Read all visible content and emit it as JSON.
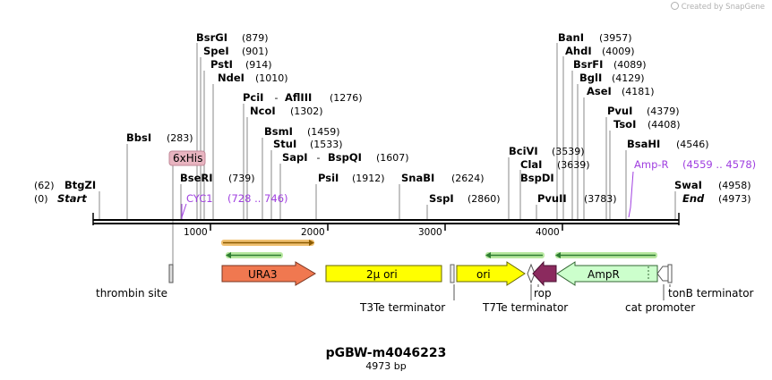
{
  "credit": "Created by SnapGene",
  "plasmid": {
    "name": "pGBW-m4046223",
    "length_label": "4973 bp",
    "length": 4973
  },
  "ticks": [
    {
      "label": "1000",
      "pos": 1000
    },
    {
      "label": "2000",
      "pos": 2000
    },
    {
      "label": "3000",
      "pos": 3000
    },
    {
      "label": "4000",
      "pos": 4000
    }
  ],
  "enzymes": [
    {
      "name": "BtgZI",
      "pos_label": "(62)",
      "pos": 62
    },
    {
      "name": "Start",
      "pos_label": "(0)",
      "pos": 0,
      "italic": true
    },
    {
      "name": "BbsI",
      "pos_label": "(283)",
      "pos": 283
    },
    {
      "name": "BsrGI",
      "pos_label": "(879)",
      "pos": 879
    },
    {
      "name": "SpeI",
      "pos_label": "(901)",
      "pos": 901
    },
    {
      "name": "PstI",
      "pos_label": "(914)",
      "pos": 914
    },
    {
      "name": "NdeI",
      "pos_label": "(1010)",
      "pos": 1010
    },
    {
      "name": "BseRI",
      "pos_label": "(739)",
      "pos": 739
    },
    {
      "name": "PciI",
      "name2": "AflIII",
      "pos_label": "(1276)",
      "pos": 1276
    },
    {
      "name": "NcoI",
      "pos_label": "(1302)",
      "pos": 1302
    },
    {
      "name": "BsmI",
      "pos_label": "(1459)",
      "pos": 1459
    },
    {
      "name": "StuI",
      "pos_label": "(1533)",
      "pos": 1533
    },
    {
      "name": "SapI",
      "name2": "BspQI",
      "pos_label": "(1607)",
      "pos": 1607
    },
    {
      "name": "PsiI",
      "pos_label": "(1912)",
      "pos": 1912
    },
    {
      "name": "SnaBI",
      "pos_label": "(2624)",
      "pos": 2624
    },
    {
      "name": "SspI",
      "pos_label": "(2860)",
      "pos": 2860
    },
    {
      "name": "BciVI",
      "pos_label": "(3539)",
      "pos": 3539
    },
    {
      "name": "ClaI",
      "pos_label": "(3639)",
      "pos": 3639
    },
    {
      "name": "BspDI",
      "pos_label": "",
      "pos": 3639
    },
    {
      "name": "PvuII",
      "pos_label": "(3783)",
      "pos": 3783
    },
    {
      "name": "BanI",
      "pos_label": "(3957)",
      "pos": 3957
    },
    {
      "name": "AhdI",
      "pos_label": "(4009)",
      "pos": 4009
    },
    {
      "name": "BsrFI",
      "pos_label": "(4089)",
      "pos": 4089
    },
    {
      "name": "BglI",
      "pos_label": "(4129)",
      "pos": 4129
    },
    {
      "name": "AseI",
      "pos_label": "(4181)",
      "pos": 4181
    },
    {
      "name": "PvuI",
      "pos_label": "(4379)",
      "pos": 4379
    },
    {
      "name": "TsoI",
      "pos_label": "(4408)",
      "pos": 4408
    },
    {
      "name": "BsaHI",
      "pos_label": "(4546)",
      "pos": 4546
    },
    {
      "name": "SwaI",
      "pos_label": "(4958)",
      "pos": 4958
    },
    {
      "name": "End",
      "pos_label": "(4973)",
      "pos": 4973,
      "italic": true
    }
  ],
  "primer_features": [
    {
      "name": "6xHis",
      "color": "#e8b4c0"
    },
    {
      "name": "CYC1",
      "range_label": "(728 .. 746)",
      "color": "#a040e0"
    },
    {
      "name": "Amp-R",
      "range_label": "(4559 .. 4578)",
      "color": "#a040e0"
    }
  ],
  "features": [
    {
      "name": "thrombin site"
    },
    {
      "name": "URA3",
      "color": "#f07850"
    },
    {
      "name": "2µ ori",
      "color": "#ffff00"
    },
    {
      "name": "T3Te terminator"
    },
    {
      "name": "ori",
      "color": "#ffff00"
    },
    {
      "name": "T7Te terminator"
    },
    {
      "name": "rop",
      "color": "#8b2a5e"
    },
    {
      "name": "AmpR",
      "color": "#ccffcc"
    },
    {
      "name": "cat promoter"
    },
    {
      "name": "tonB terminator"
    }
  ]
}
